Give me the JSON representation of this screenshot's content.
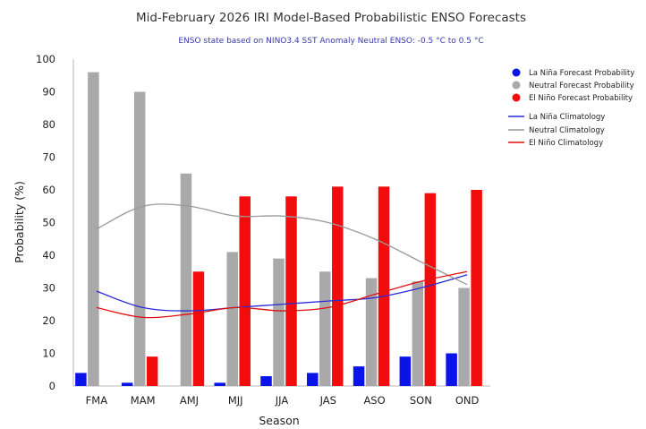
{
  "chart_data": {
    "type": "bar",
    "title": "Mid-February 2026 IRI Model-Based Probabilistic ENSO Forecasts",
    "subtitle": "ENSO state based on NINO3.4 SST Anomaly Neutral ENSO: -0.5 °C to 0.5 °C",
    "xlabel": "Season",
    "ylabel": "Probability (%)",
    "ylim": [
      0,
      100
    ],
    "yticks": [
      0,
      10,
      20,
      30,
      40,
      50,
      60,
      70,
      80,
      90,
      100
    ],
    "categories": [
      "FMA",
      "MAM",
      "AMJ",
      "MJJ",
      "JJA",
      "JAS",
      "ASO",
      "SON",
      "OND"
    ],
    "series": [
      {
        "name": "La Niña Forecast Probability",
        "kind": "bar",
        "color": "#0a14e8",
        "values": [
          4,
          1,
          0,
          1,
          3,
          4,
          6,
          9,
          10
        ]
      },
      {
        "name": "Neutral Forecast Probability",
        "kind": "bar",
        "color": "#a9a9a9",
        "values": [
          96,
          90,
          65,
          41,
          39,
          35,
          33,
          32,
          30
        ]
      },
      {
        "name": "El Niño Forecast Probability",
        "kind": "bar",
        "color": "#f20c0c",
        "values": [
          0,
          9,
          35,
          58,
          58,
          61,
          61,
          59,
          60
        ]
      },
      {
        "name": "La Niña Climatology",
        "kind": "line",
        "color": "#2a2ad8",
        "values": [
          29,
          24,
          23,
          24,
          25,
          26,
          27,
          30,
          34
        ]
      },
      {
        "name": "Neutral Climatology",
        "kind": "line",
        "color": "#9a9a9a",
        "values": [
          48,
          55,
          55,
          52,
          52,
          50,
          45,
          38,
          31
        ]
      },
      {
        "name": "El Niño Climatology",
        "kind": "line",
        "color": "#e01010",
        "values": [
          24,
          21,
          22,
          24,
          23,
          24,
          28,
          32,
          35
        ]
      }
    ],
    "grid": false,
    "legend_position": "right"
  }
}
